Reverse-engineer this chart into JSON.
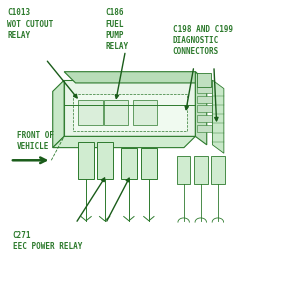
{
  "bg_color": "#ffffff",
  "line_color": "#2d7a2d",
  "text_color": "#2d7a2d",
  "dark_line": "#1a5c1a",
  "labels": {
    "c1013": "C1013\nWOT CUTOUT\nRELAY",
    "c186": "C186\nFUEL\nPUMP\nRELAY",
    "c198": "C198 AND C199\nDIAGNOSTIC\nCONNECTORS",
    "front": "FRONT OF\nVEHICLE",
    "c271": "C271\nEEC POWER RELAY"
  }
}
